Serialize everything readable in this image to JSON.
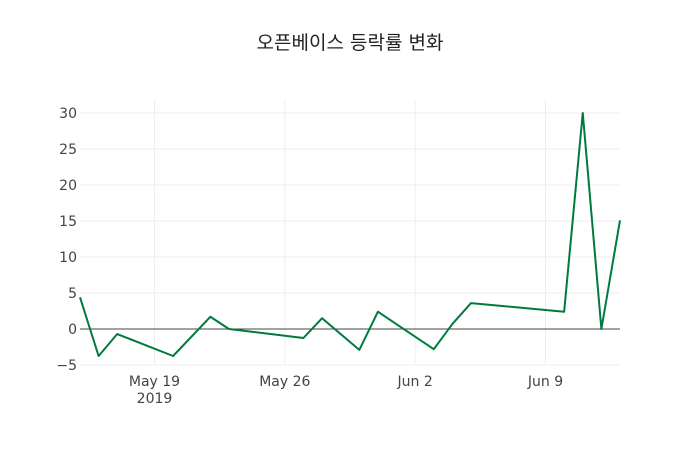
{
  "chart_data": {
    "type": "line",
    "title": "오픈베이스 등락률 변화",
    "xlabel": "",
    "ylabel": "",
    "x": [
      "2019-05-15",
      "2019-05-16",
      "2019-05-17",
      "2019-05-20",
      "2019-05-22",
      "2019-05-23",
      "2019-05-27",
      "2019-05-28",
      "2019-05-30",
      "2019-05-31",
      "2019-06-03",
      "2019-06-04",
      "2019-06-05",
      "2019-06-10",
      "2019-06-11",
      "2019-06-12",
      "2019-06-13"
    ],
    "series": [
      {
        "name": "등락률",
        "color": "#007a3d",
        "values": [
          4.4,
          -3.75,
          -0.7,
          -3.75,
          1.7,
          0,
          -1.25,
          1.5,
          -2.9,
          2.4,
          -2.8,
          0.7,
          3.6,
          2.4,
          30,
          0,
          15.1
        ]
      }
    ],
    "xlim": [
      "2019-05-15",
      "2019-06-13"
    ],
    "ylim": [
      -5,
      32
    ],
    "yticks": [
      -5,
      0,
      5,
      10,
      15,
      20,
      25,
      30
    ],
    "ytick_labels": [
      "−5",
      "0",
      "5",
      "10",
      "15",
      "20",
      "25",
      "30"
    ],
    "xticks": [
      "2019-05-19",
      "2019-05-26",
      "2019-06-02",
      "2019-06-09"
    ],
    "xtick_labels": [
      "May 19",
      "May 26",
      "Jun 2",
      "Jun 9"
    ],
    "xtick_year": "2019",
    "grid": true,
    "legend": "none"
  }
}
